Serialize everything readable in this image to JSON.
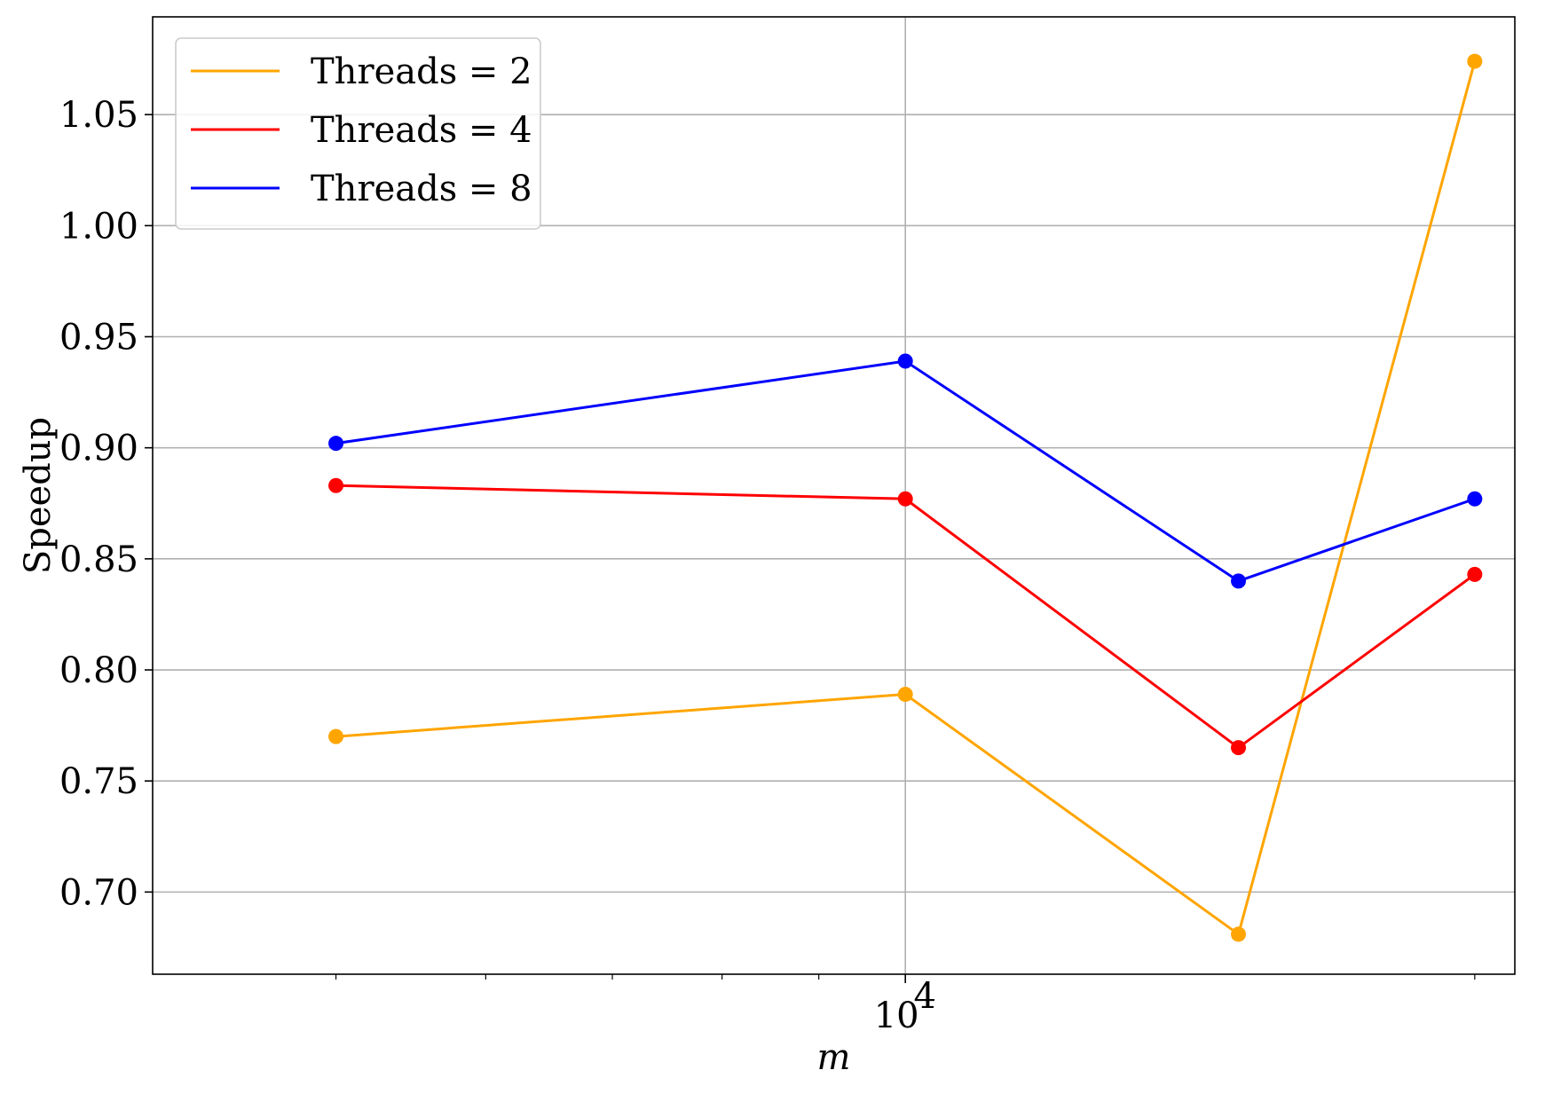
{
  "chart_data": {
    "type": "line",
    "xscale": "log",
    "x": [
      5000,
      10000,
      15000,
      20000
    ],
    "x_ticks": [
      {
        "value": 10000,
        "label": "10",
        "exponent": "4"
      }
    ],
    "xlim": [
      4000,
      21000
    ],
    "ylim": [
      0.663,
      1.094
    ],
    "y_ticks": [
      "0.70",
      "0.75",
      "0.80",
      "0.85",
      "0.90",
      "0.95",
      "1.00",
      "1.05"
    ],
    "xlabel": "m",
    "ylabel": "Speedup",
    "grid": true,
    "legend_position": "top-left",
    "series": [
      {
        "name": "Threads = 2",
        "color": "#FFA500",
        "values": [
          0.77,
          0.789,
          0.681,
          1.074
        ]
      },
      {
        "name": "Threads = 4",
        "color": "#FF0000",
        "values": [
          0.883,
          0.877,
          0.765,
          0.843
        ]
      },
      {
        "name": "Threads = 8",
        "color": "#0000FF",
        "values": [
          0.902,
          0.939,
          0.84,
          0.877
        ]
      }
    ]
  }
}
